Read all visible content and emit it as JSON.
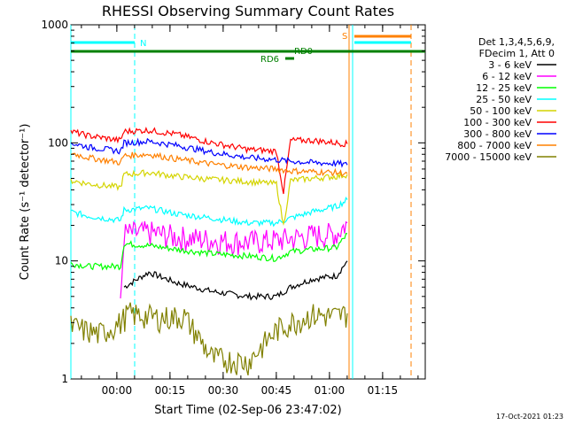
{
  "chart_data": {
    "type": "line",
    "title": "RHESSI Observing Summary Count Rates",
    "xlabel": "Start Time (02-Sep-06 23:47:02)",
    "ylabel": "Count Rate (s⁻¹ detector⁻¹)",
    "y_scale": "log",
    "ylim": [
      1,
      1000
    ],
    "xlim_minutes": [
      0,
      100
    ],
    "x_tick_labels": [
      "00:00",
      "00:15",
      "00:30",
      "00:45",
      "01:00",
      "01:15"
    ],
    "y_tick_labels": [
      "1",
      "10",
      "100",
      "1000"
    ],
    "legend": {
      "placement": "right",
      "header": [
        "Det 1,3,4,5,6,9,",
        "FDecim 1, Att 0"
      ],
      "entries": [
        "3 - 6 keV",
        "6 - 12 keV",
        "12 - 25 keV",
        "25 - 50 keV",
        "50 - 100 keV",
        "100 - 300 keV",
        "300 - 800 keV",
        "800 - 7000 keV",
        "7000 - 15000 keV"
      ]
    },
    "series": [
      {
        "name": "3 - 6 keV",
        "color": "#000000",
        "x": [
          15,
          22,
          30,
          40,
          50,
          58,
          62,
          68,
          75,
          78
        ],
        "y": [
          6,
          8,
          6.5,
          5.5,
          5,
          5,
          6,
          7,
          7.5,
          10
        ]
      },
      {
        "name": "6 - 12 keV",
        "color": "#ff00ff",
        "x": [
          14,
          15,
          22,
          30,
          40,
          50,
          58,
          62,
          68,
          75,
          78
        ],
        "y": [
          4,
          17,
          17.5,
          16,
          15,
          14.5,
          15,
          15.5,
          16.5,
          17,
          21
        ]
      },
      {
        "name": "12 - 25 keV",
        "color": "#00ff00",
        "x": [
          0,
          5,
          14,
          15,
          22,
          30,
          40,
          50,
          58,
          62,
          68,
          75,
          78
        ],
        "y": [
          9.5,
          9,
          9,
          14,
          13.5,
          12.5,
          11.5,
          11,
          10.5,
          12,
          12.5,
          13,
          17
        ]
      },
      {
        "name": "25 - 50 keV",
        "color": "#00ffff",
        "x": [
          0,
          5,
          14,
          15,
          22,
          30,
          40,
          50,
          58,
          62,
          68,
          75,
          78
        ],
        "y": [
          26,
          24,
          22,
          27,
          28,
          25,
          23,
          21,
          21,
          23,
          26,
          29,
          33
        ]
      },
      {
        "name": "50 - 100 keV",
        "color": "#d4d400",
        "x": [
          0,
          5,
          14,
          15,
          22,
          30,
          40,
          50,
          58,
          60,
          62,
          68,
          75,
          78
        ],
        "y": [
          48,
          45,
          42,
          54,
          56,
          52,
          49,
          47,
          45,
          20,
          48,
          50,
          52,
          54
        ]
      },
      {
        "name": "100 - 300 keV",
        "color": "#ff0000",
        "x": [
          0,
          5,
          14,
          15,
          22,
          30,
          40,
          50,
          58,
          60,
          62,
          68,
          75,
          78
        ],
        "y": [
          125,
          115,
          105,
          125,
          128,
          118,
          100,
          88,
          85,
          38,
          105,
          105,
          100,
          98
        ]
      },
      {
        "name": "300 - 800 keV",
        "color": "#0000ff",
        "x": [
          0,
          5,
          14,
          15,
          22,
          30,
          40,
          50,
          58,
          62,
          68,
          75,
          78
        ],
        "y": [
          100,
          92,
          85,
          100,
          103,
          95,
          83,
          75,
          72,
          70,
          68,
          67,
          65
        ]
      },
      {
        "name": "800 - 7000 keV",
        "color": "#ff8000",
        "x": [
          0,
          5,
          14,
          15,
          22,
          30,
          40,
          50,
          58,
          62,
          68,
          75,
          78
        ],
        "y": [
          82,
          75,
          68,
          78,
          80,
          73,
          66,
          62,
          60,
          58,
          57,
          56,
          55
        ]
      },
      {
        "name": "7000 - 15000 keV",
        "color": "#808000",
        "x": [
          0,
          8,
          14,
          16,
          25,
          32,
          40,
          50,
          58,
          62,
          68,
          75,
          78
        ],
        "y": [
          2.8,
          2.4,
          3,
          3.6,
          3.3,
          3.4,
          1.5,
          1.4,
          2.6,
          3,
          3.5,
          3.4,
          3.6
        ]
      }
    ],
    "annotations": [
      {
        "label": "N",
        "color": "#00ffff"
      },
      {
        "label": "S",
        "color": "#ff8000"
      },
      {
        "label": "RD0",
        "color": "#008000"
      },
      {
        "label": "RD6",
        "color": "#008000"
      }
    ],
    "timestamp": "17-Oct-2021 01:23"
  }
}
